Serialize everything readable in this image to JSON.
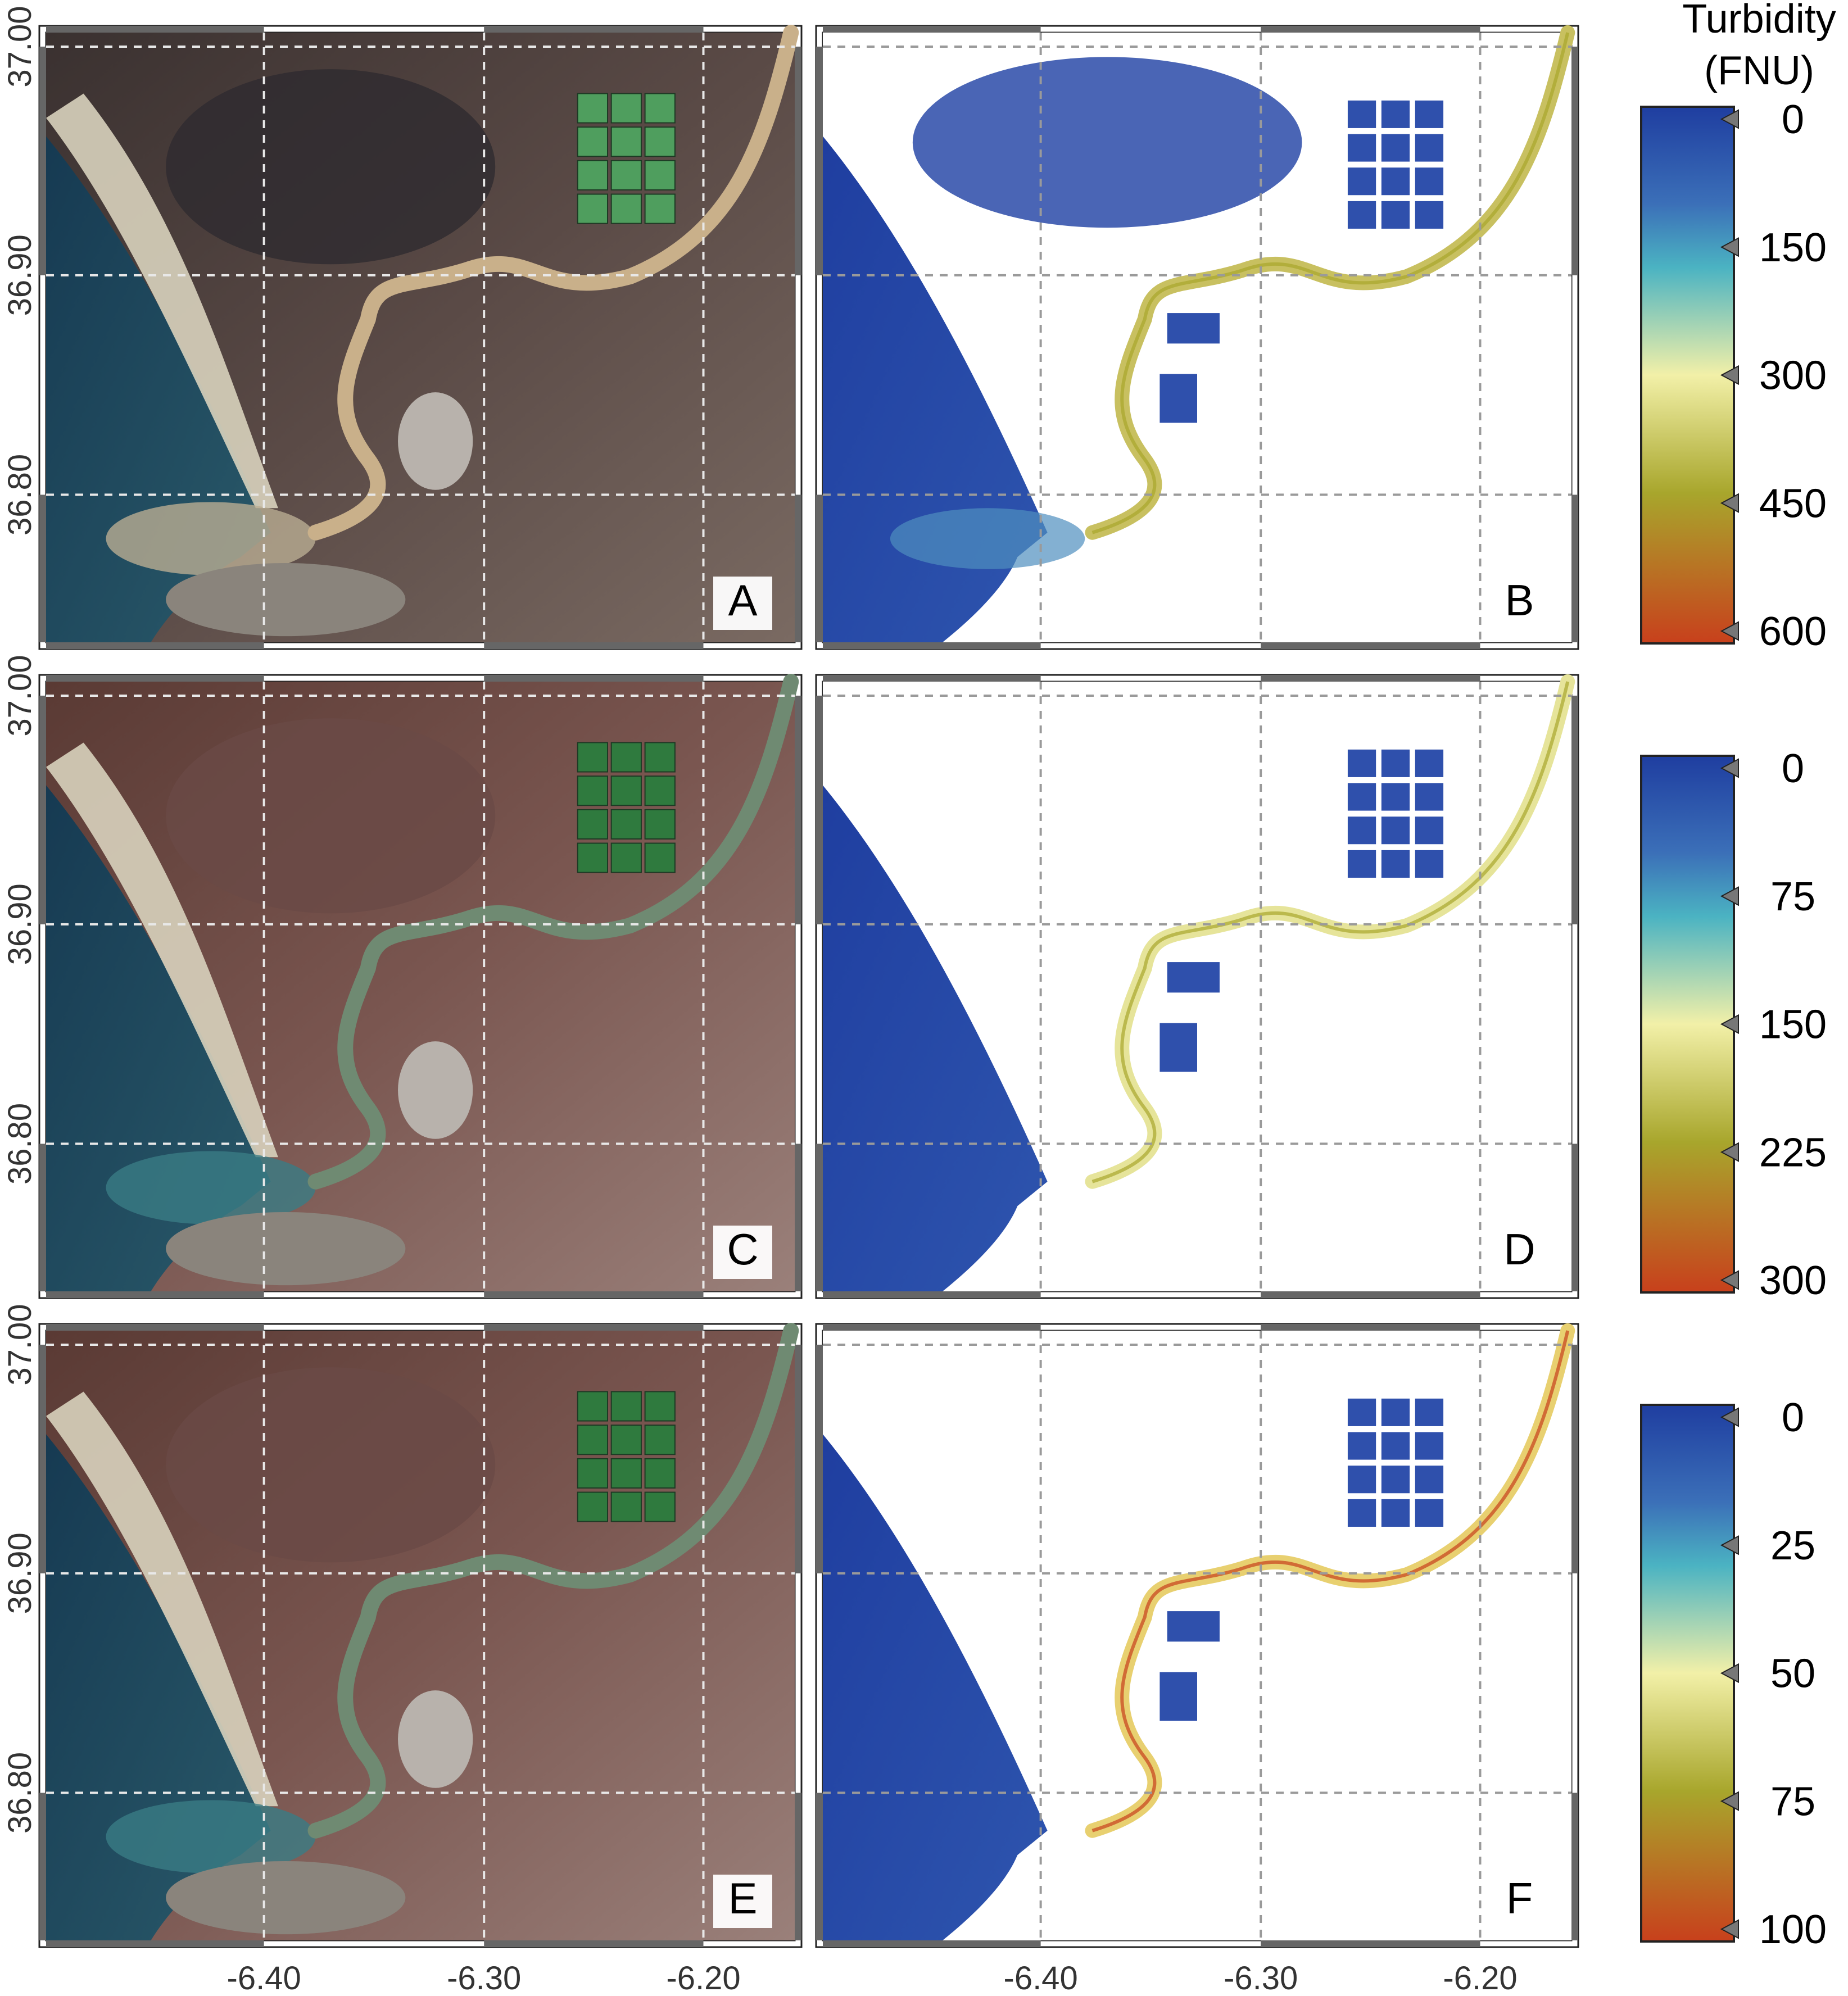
{
  "colorbar_title": [
    "Turbidity",
    "(FNU)"
  ],
  "panels": [
    {
      "id": "A",
      "type": "satellite-true-color",
      "row": 0,
      "col": 0
    },
    {
      "id": "B",
      "type": "turbidity-map",
      "row": 0,
      "col": 1
    },
    {
      "id": "C",
      "type": "satellite-true-color",
      "row": 1,
      "col": 0
    },
    {
      "id": "D",
      "type": "turbidity-map",
      "row": 1,
      "col": 1
    },
    {
      "id": "E",
      "type": "satellite-true-color",
      "row": 2,
      "col": 0
    },
    {
      "id": "F",
      "type": "turbidity-map",
      "row": 2,
      "col": 1
    }
  ],
  "axes": {
    "x_ticks": [
      "-6.40",
      "-6.30",
      "-6.20"
    ],
    "y_ticks": [
      "37.00",
      "36.90",
      "36.80"
    ],
    "grid": "dashed"
  },
  "colorbars": [
    {
      "row": 0,
      "ticks": [
        "0",
        "150",
        "300",
        "450",
        "600"
      ]
    },
    {
      "row": 1,
      "ticks": [
        "0",
        "75",
        "150",
        "225",
        "300"
      ]
    },
    {
      "row": 2,
      "ticks": [
        "0",
        "25",
        "50",
        "75",
        "100"
      ]
    }
  ],
  "colors": {
    "low": "#1f3ea0",
    "mid_low": "#4bb3c2",
    "mid": "#f2f0a8",
    "mid_high": "#a8a62c",
    "high": "#c8401c",
    "sea_rgb": "#1f4a62",
    "land_rgb": "#4a3a38",
    "river_rgb": "#c9b08a"
  }
}
